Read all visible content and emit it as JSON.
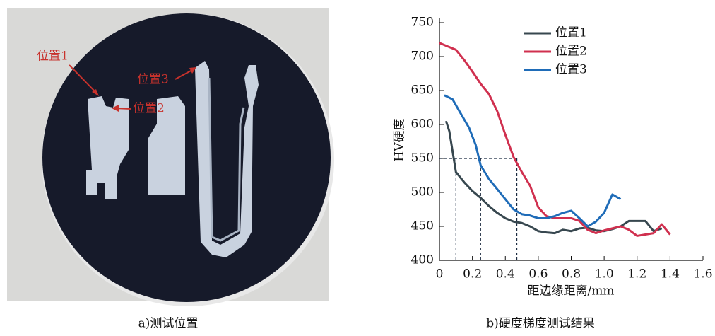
{
  "photo": {
    "labels": [
      "位置1",
      "位置2",
      "位置3"
    ],
    "caption": "a)测试位置"
  },
  "chart_data": {
    "type": "line",
    "caption": "b)硬度梯度测试结果",
    "xlabel": "距边缘距离/mm",
    "ylabel": "HV硬度",
    "xlim": [
      0,
      1.6
    ],
    "xticks": [
      0,
      0.2,
      0.4,
      0.6,
      0.8,
      {
        "value": 1,
        "label": "1.0"
      },
      1.2,
      1.4,
      1.6
    ],
    "ylim": [
      400,
      750
    ],
    "yticks": [
      400,
      450,
      500,
      550,
      600,
      650,
      700,
      750
    ],
    "legend": "upper center",
    "reference_lines": {
      "y": 550,
      "x": [
        0.1,
        0.25,
        0.47
      ]
    },
    "series": [
      {
        "name": "位置1",
        "color": "#37474f",
        "x": [
          0.04,
          0.06,
          0.08,
          0.1,
          0.15,
          0.2,
          0.25,
          0.3,
          0.35,
          0.4,
          0.45,
          0.5,
          0.55,
          0.6,
          0.65,
          0.7,
          0.75,
          0.8,
          0.85,
          0.9,
          0.95,
          1.0,
          1.05,
          1.1,
          1.15,
          1.2,
          1.25,
          1.3,
          1.35
        ],
        "values": [
          605,
          590,
          560,
          530,
          515,
          502,
          492,
          480,
          470,
          462,
          457,
          455,
          450,
          443,
          441,
          440,
          445,
          443,
          447,
          448,
          444,
          443,
          446,
          450,
          458,
          458,
          458,
          443,
          447
        ]
      },
      {
        "name": "位置2",
        "color": "#d0304f",
        "x": [
          0,
          0.05,
          0.1,
          0.15,
          0.2,
          0.25,
          0.3,
          0.35,
          0.4,
          0.45,
          0.5,
          0.55,
          0.6,
          0.65,
          0.7,
          0.8,
          0.85,
          0.9,
          0.95,
          1.0,
          1.1,
          1.15,
          1.2,
          1.25,
          1.3,
          1.35,
          1.4
        ],
        "values": [
          720,
          715,
          710,
          695,
          678,
          660,
          645,
          620,
          585,
          552,
          530,
          510,
          478,
          465,
          462,
          462,
          458,
          445,
          440,
          444,
          450,
          445,
          436,
          438,
          440,
          453,
          438
        ]
      },
      {
        "name": "位置3",
        "color": "#1f6cb8",
        "x": [
          0.03,
          0.08,
          0.12,
          0.18,
          0.22,
          0.25,
          0.3,
          0.35,
          0.4,
          0.45,
          0.5,
          0.55,
          0.6,
          0.65,
          0.7,
          0.75,
          0.8,
          0.85,
          0.9,
          0.95,
          1.0,
          1.05,
          1.1
        ],
        "values": [
          643,
          637,
          620,
          595,
          570,
          540,
          520,
          505,
          490,
          475,
          468,
          466,
          462,
          462,
          465,
          470,
          473,
          462,
          450,
          457,
          470,
          497,
          490
        ]
      }
    ]
  }
}
